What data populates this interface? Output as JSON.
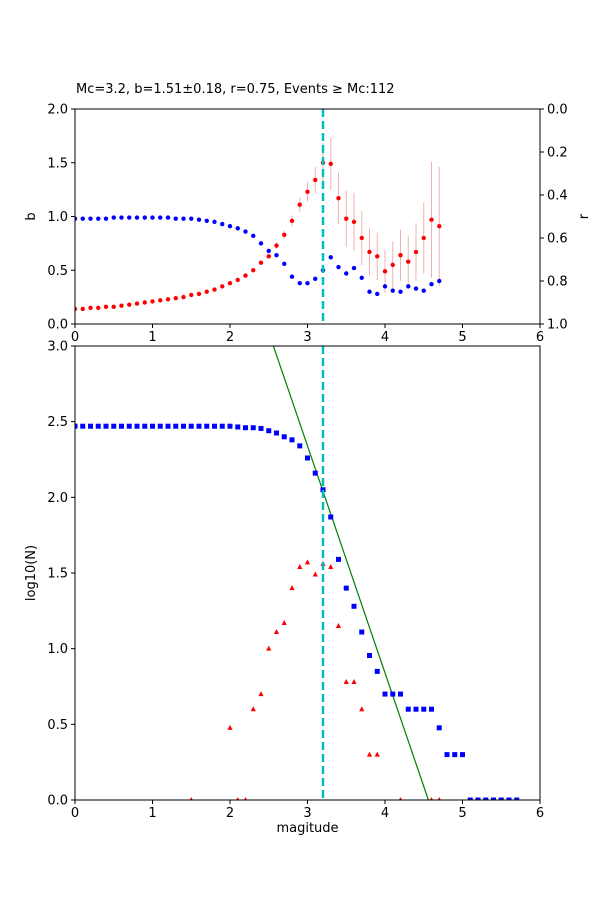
{
  "chart_data": [
    {
      "type": "scatter",
      "title": "Mc=3.2, b=1.51±0.18, r=0.75, Events ≥ Mc:112",
      "xlabel": "",
      "ylabel": "b",
      "ylabel_right": "r",
      "xlim": [
        0,
        6
      ],
      "ylim": [
        0,
        2.0
      ],
      "ylim_right": [
        1.0,
        0.0
      ],
      "xticks": [
        "0",
        "1",
        "2",
        "3",
        "4",
        "5",
        "6"
      ],
      "yticks": [
        "0.0",
        "0.5",
        "1.0",
        "1.5",
        "2.0"
      ],
      "yticks_right": [
        "0.0",
        "0.2",
        "0.4",
        "0.6",
        "0.8",
        "1.0"
      ],
      "grid": false,
      "mc_line": {
        "x": 3.2,
        "color": "#00bfbf"
      },
      "series": [
        {
          "axis": "left",
          "color": "#ff0000",
          "error_color": "#f4b0b0",
          "x": [
            0,
            0.1,
            0.2,
            0.3,
            0.4,
            0.5,
            0.6,
            0.7,
            0.8,
            0.9,
            1.0,
            1.1,
            1.2,
            1.3,
            1.4,
            1.5,
            1.6,
            1.7,
            1.8,
            1.9,
            2.0,
            2.1,
            2.2,
            2.3,
            2.4,
            2.5,
            2.6,
            2.7,
            2.8,
            2.9,
            3.0,
            3.1,
            3.2,
            3.3,
            3.4,
            3.5,
            3.6,
            3.7,
            3.8,
            3.9,
            4.0,
            4.1,
            4.2,
            4.3,
            4.4,
            4.5,
            4.6,
            4.7
          ],
          "y": [
            0.14,
            0.14,
            0.15,
            0.15,
            0.16,
            0.16,
            0.17,
            0.18,
            0.19,
            0.2,
            0.21,
            0.22,
            0.23,
            0.24,
            0.25,
            0.27,
            0.28,
            0.3,
            0.32,
            0.35,
            0.38,
            0.41,
            0.45,
            0.5,
            0.57,
            0.63,
            0.73,
            0.83,
            0.96,
            1.11,
            1.23,
            1.34,
            1.5,
            1.49,
            1.17,
            0.98,
            0.95,
            0.8,
            0.67,
            0.63,
            0.49,
            0.55,
            0.64,
            0.58,
            0.67,
            0.8,
            0.97,
            0.91
          ],
          "err": [
            0.01,
            0.01,
            0.01,
            0.01,
            0.01,
            0.01,
            0.01,
            0.01,
            0.01,
            0.01,
            0.01,
            0.01,
            0.01,
            0.01,
            0.01,
            0.01,
            0.01,
            0.01,
            0.01,
            0.01,
            0.01,
            0.01,
            0.01,
            0.02,
            0.02,
            0.02,
            0.03,
            0.04,
            0.05,
            0.07,
            0.09,
            0.12,
            0.18,
            0.24,
            0.24,
            0.26,
            0.27,
            0.25,
            0.22,
            0.22,
            0.2,
            0.22,
            0.24,
            0.24,
            0.27,
            0.33,
            0.54,
            0.55
          ]
        },
        {
          "axis": "right",
          "color": "#0000ff",
          "x": [
            0,
            0.1,
            0.2,
            0.3,
            0.4,
            0.5,
            0.6,
            0.7,
            0.8,
            0.9,
            1.0,
            1.1,
            1.2,
            1.3,
            1.4,
            1.5,
            1.6,
            1.7,
            1.8,
            1.9,
            2.0,
            2.1,
            2.2,
            2.3,
            2.4,
            2.5,
            2.6,
            2.7,
            2.8,
            2.9,
            3.0,
            3.1,
            3.2,
            3.3,
            3.4,
            3.5,
            3.6,
            3.7,
            3.8,
            3.9,
            4.0,
            4.1,
            4.2,
            4.3,
            4.4,
            4.5,
            4.6,
            4.7
          ],
          "y": [
            0.51,
            0.51,
            0.51,
            0.51,
            0.51,
            0.505,
            0.505,
            0.505,
            0.505,
            0.505,
            0.505,
            0.505,
            0.505,
            0.51,
            0.51,
            0.51,
            0.515,
            0.52,
            0.525,
            0.535,
            0.545,
            0.555,
            0.57,
            0.59,
            0.625,
            0.66,
            0.68,
            0.72,
            0.78,
            0.81,
            0.81,
            0.79,
            0.75,
            0.69,
            0.735,
            0.765,
            0.74,
            0.785,
            0.85,
            0.86,
            0.825,
            0.845,
            0.85,
            0.825,
            0.835,
            0.845,
            0.815,
            0.8
          ]
        }
      ]
    },
    {
      "type": "scatter",
      "title": "",
      "xlabel": "magitude",
      "ylabel": "log10(N)",
      "xlim": [
        0,
        6
      ],
      "ylim": [
        0,
        3.0
      ],
      "xticks": [
        "0",
        "1",
        "2",
        "3",
        "4",
        "5",
        "6"
      ],
      "yticks": [
        "0.0",
        "0.5",
        "1.0",
        "1.5",
        "2.0",
        "2.5",
        "3.0"
      ],
      "grid": false,
      "mc_line": {
        "x": 3.2,
        "color": "#00bfbf"
      },
      "fit_line": {
        "color": "#008000",
        "x": [
          2.56,
          4.56
        ],
        "y": [
          3.0,
          0.0
        ]
      },
      "series": [
        {
          "marker": "square",
          "color": "#0000ff",
          "x": [
            0,
            0.1,
            0.2,
            0.3,
            0.4,
            0.5,
            0.6,
            0.7,
            0.8,
            0.9,
            1.0,
            1.1,
            1.2,
            1.3,
            1.4,
            1.5,
            1.6,
            1.7,
            1.8,
            1.9,
            2.0,
            2.1,
            2.2,
            2.3,
            2.4,
            2.5,
            2.6,
            2.7,
            2.8,
            2.9,
            3.0,
            3.1,
            3.2,
            3.3,
            3.4,
            3.5,
            3.6,
            3.7,
            3.8,
            3.9,
            4.0,
            4.1,
            4.2,
            4.3,
            4.4,
            4.5,
            4.6,
            4.7,
            4.8,
            4.9,
            5.0,
            5.1,
            5.2,
            5.3,
            5.4,
            5.5,
            5.6,
            5.7
          ],
          "y": [
            2.47,
            2.47,
            2.47,
            2.47,
            2.47,
            2.47,
            2.47,
            2.47,
            2.47,
            2.47,
            2.47,
            2.47,
            2.47,
            2.47,
            2.47,
            2.47,
            2.47,
            2.47,
            2.47,
            2.47,
            2.47,
            2.465,
            2.46,
            2.46,
            2.455,
            2.44,
            2.425,
            2.4,
            2.38,
            2.34,
            2.26,
            2.16,
            2.05,
            1.87,
            1.59,
            1.4,
            1.28,
            1.11,
            0.955,
            0.85,
            0.7,
            0.7,
            0.7,
            0.6,
            0.6,
            0.6,
            0.6,
            0.477,
            0.3,
            0.3,
            0.3,
            0,
            0,
            0,
            0,
            0,
            0,
            0
          ]
        },
        {
          "marker": "triangle",
          "color": "#ff0000",
          "x": [
            1.5,
            2.0,
            2.1,
            2.2,
            2.3,
            2.4,
            2.5,
            2.6,
            2.7,
            2.8,
            2.9,
            3.0,
            3.1,
            3.2,
            3.3,
            3.4,
            3.5,
            3.6,
            3.7,
            3.8,
            3.9,
            4.2,
            4.6,
            4.7
          ],
          "y": [
            0,
            0.477,
            0,
            0,
            0.6,
            0.7,
            1.0,
            1.11,
            1.17,
            1.4,
            1.54,
            1.57,
            1.49,
            1.56,
            1.54,
            1.15,
            0.78,
            0.78,
            0.6,
            0.3,
            0.3,
            0,
            0,
            0
          ]
        }
      ]
    }
  ]
}
